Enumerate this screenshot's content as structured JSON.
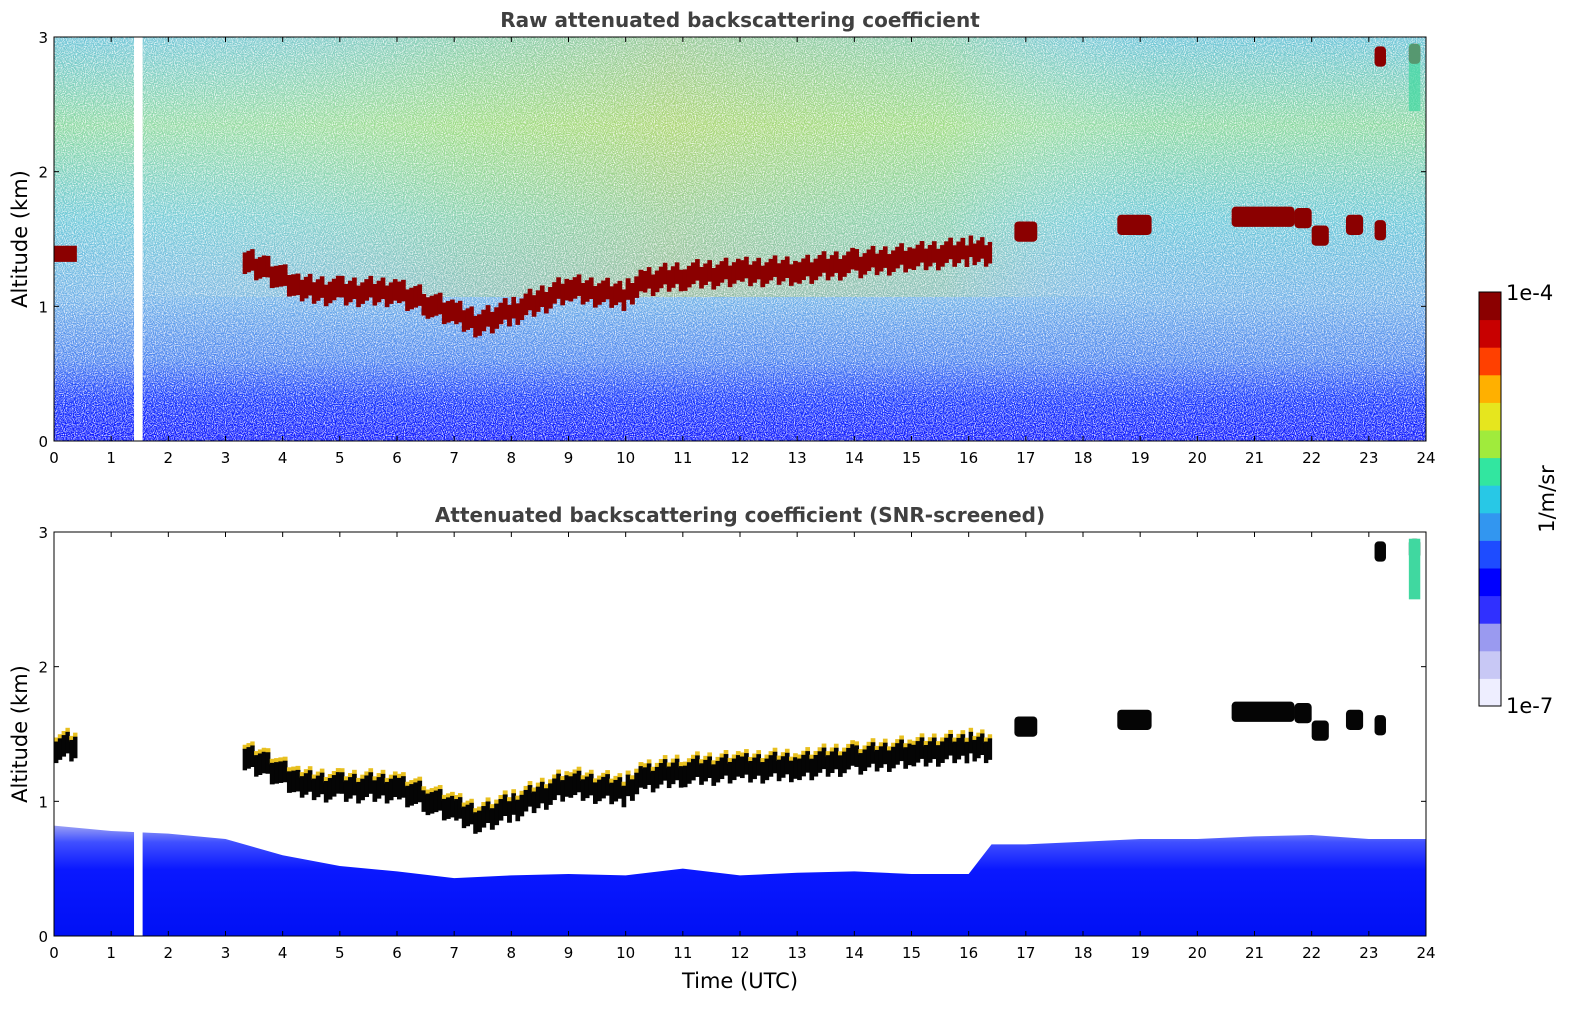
{
  "chart_data": [
    {
      "type": "heatmap",
      "title": "Raw attenuated backscattering coefficient",
      "xlabel": "",
      "ylabel": "Altitude (km)",
      "xlim": [
        0,
        24
      ],
      "ylim": [
        0,
        3
      ],
      "xticks": [
        "0",
        "1",
        "2",
        "3",
        "4",
        "5",
        "6",
        "7",
        "8",
        "9",
        "10",
        "11",
        "12",
        "13",
        "14",
        "15",
        "16",
        "17",
        "18",
        "19",
        "20",
        "21",
        "22",
        "23",
        "24"
      ],
      "yticks": [
        "0",
        "1",
        "2",
        "3"
      ],
      "features": [
        {
          "name": "boundary-layer cloud top",
          "unit": "km",
          "t": [
            0,
            0.4,
            3.3,
            3.7,
            4.3,
            5,
            6,
            6.5,
            7,
            7.4,
            8,
            9,
            10,
            10.3,
            11,
            12,
            13,
            14,
            15,
            16,
            16.4
          ],
          "z": [
            1.4,
            1.4,
            1.34,
            1.27,
            1.12,
            1.1,
            1.1,
            1.02,
            0.93,
            0.87,
            0.95,
            1.12,
            1.07,
            1.17,
            1.22,
            1.24,
            1.26,
            1.31,
            1.35,
            1.4,
            1.4
          ]
        },
        {
          "name": "clouds after 16.5 h",
          "unit": "km",
          "segments": [
            [
              16.8,
              17.2,
              1.55
            ],
            [
              18.6,
              19.2,
              1.6
            ],
            [
              20.6,
              21.7,
              1.66
            ],
            [
              21.7,
              22.0,
              1.65
            ],
            [
              22.0,
              22.3,
              1.52
            ],
            [
              22.6,
              22.9,
              1.6
            ],
            [
              23.1,
              23.3,
              1.56
            ],
            [
              23.1,
              23.3,
              2.85
            ],
            [
              23.7,
              23.9,
              2.87
            ]
          ]
        },
        {
          "name": "data gap",
          "t": [
            1.4,
            1.55
          ]
        }
      ]
    },
    {
      "type": "heatmap",
      "title": "Attenuated backscattering coefficient (SNR-screened)",
      "xlabel": "Time (UTC)",
      "ylabel": "Altitude (km)",
      "xlim": [
        0,
        24
      ],
      "ylim": [
        0,
        3
      ],
      "xticks": [
        "0",
        "1",
        "2",
        "3",
        "4",
        "5",
        "6",
        "7",
        "8",
        "9",
        "10",
        "11",
        "12",
        "13",
        "14",
        "15",
        "16",
        "17",
        "18",
        "19",
        "20",
        "21",
        "22",
        "23",
        "24"
      ],
      "yticks": [
        "0",
        "1",
        "2",
        "3"
      ],
      "features": [
        {
          "name": "aerosol layer top (screened)",
          "unit": "km",
          "t": [
            0,
            1,
            2,
            3,
            4,
            5,
            6,
            7,
            8,
            9,
            10,
            11,
            12,
            13,
            14,
            15,
            16,
            16.4,
            17,
            18,
            19,
            20,
            21,
            22,
            23,
            24
          ],
          "z": [
            0.82,
            0.78,
            0.76,
            0.72,
            0.6,
            0.52,
            0.48,
            0.43,
            0.45,
            0.46,
            0.45,
            0.5,
            0.45,
            0.47,
            0.48,
            0.46,
            0.46,
            0.68,
            0.68,
            0.7,
            0.72,
            0.72,
            0.74,
            0.75,
            0.72,
            0.72
          ]
        }
      ]
    }
  ],
  "colorbar": {
    "label": "1/m/sr",
    "max_label": "1e-4",
    "min_label": "1e-7",
    "scale": "log",
    "colors": [
      "#eeeeff",
      "#c8c8f5",
      "#9a9af0",
      "#3030ff",
      "#0000ff",
      "#1e4cff",
      "#3296f0",
      "#28c8e6",
      "#32e6a0",
      "#a0eb3c",
      "#e6e61e",
      "#ffb000",
      "#ff4000",
      "#c80000",
      "#8b0000"
    ]
  }
}
